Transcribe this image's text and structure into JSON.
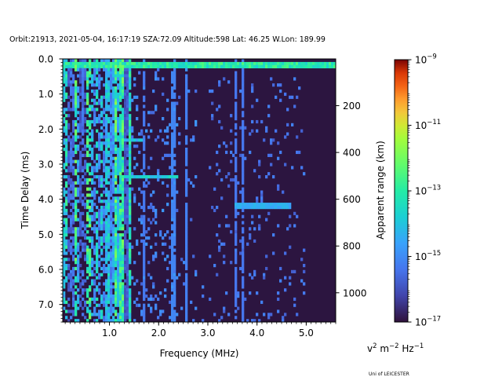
{
  "chart_data": {
    "type": "heatmap",
    "title": "Orbit:21913, 2021-05-04, 16:17:19 SZA:72.09 Altitude:598 Lat: 46.25 W.Lon: 189.99",
    "xlabel": "Frequency (MHz)",
    "ylabel": "Time Delay (ms)",
    "y2label": "Apparent range (km)",
    "colorbar_label_base": "v",
    "colorbar_label_sup1": "2",
    "colorbar_label_mid": " m",
    "colorbar_label_sup2": "−2",
    "colorbar_label_end": " Hz",
    "colorbar_label_sup3": "−1",
    "xlim": [
      0.05,
      5.6
    ],
    "ylim": [
      7.5,
      0.0
    ],
    "y2lim_km": [
      0,
      1125
    ],
    "x_ticks": [
      1.0,
      2.0,
      3.0,
      4.0,
      5.0
    ],
    "x_tick_labels": [
      "1.0",
      "2.0",
      "3.0",
      "4.0",
      "5.0"
    ],
    "y_ticks": [
      0.0,
      1.0,
      2.0,
      3.0,
      4.0,
      5.0,
      6.0,
      7.0
    ],
    "y_tick_labels": [
      "0.0",
      "1.0",
      "2.0",
      "3.0",
      "4.0",
      "5.0",
      "6.0",
      "7.0"
    ],
    "y2_ticks": [
      200,
      400,
      600,
      800,
      1000
    ],
    "y2_tick_labels": [
      "200",
      "400",
      "600",
      "800",
      "1000"
    ],
    "colorbar_log_range": [
      -17,
      -9
    ],
    "colorbar_ticks": [
      {
        "exp": -9,
        "label_base": "10",
        "label_exp": "−9"
      },
      {
        "exp": -11,
        "label_base": "10",
        "label_exp": "−11"
      },
      {
        "exp": -13,
        "label_base": "10",
        "label_exp": "−13"
      },
      {
        "exp": -15,
        "label_base": "10",
        "label_exp": "−15"
      },
      {
        "exp": -17,
        "label_base": "10",
        "label_exp": "−17"
      }
    ],
    "colormap": "turbo",
    "features": {
      "surface_reflection_delay_ms": 0.15,
      "surface_reflection_freq_range_mhz": [
        0.05,
        5.6
      ],
      "ionospheric_echo_delay_ms": 4.2,
      "ionospheric_echo_freq_range_mhz": [
        3.55,
        4.7
      ],
      "ionospheric_echo_2_delay_ms": 3.35,
      "ionospheric_echo_2_freq_range_mhz": [
        1.3,
        2.4
      ],
      "ionospheric_echo_3_delay_ms": 2.3,
      "ionospheric_echo_3_freq_range_mhz": [
        1.2,
        1.7
      ],
      "vertical_lines_mhz": [
        1.7,
        2.3,
        2.55,
        3.55,
        3.7
      ],
      "low_freq_noise_band_mhz": [
        0.05,
        1.45
      ]
    },
    "grid": false
  },
  "footer": {
    "credit": "Uni of LEICESTER"
  }
}
